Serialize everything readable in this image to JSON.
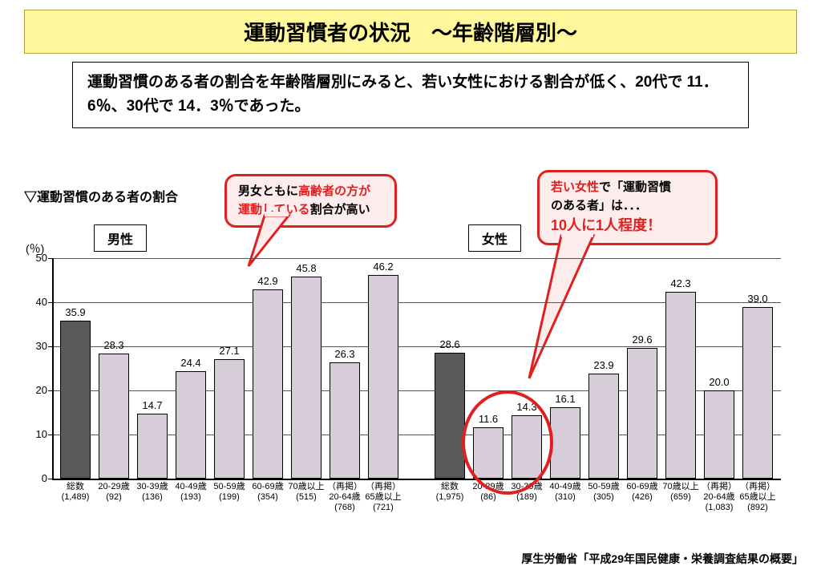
{
  "title": "運動習慣者の状況　～年齢階層別～",
  "title_bg": "#fff799",
  "description": "運動習慣のある者の割合を年齢階層別にみると、若い女性における割合が低く、20代で 11．6％、30代で 14．3％であった。",
  "subheading": "▽運動習慣のある者の割合",
  "y_unit": "(％)",
  "chart": {
    "type": "bar",
    "ylim": [
      0,
      50
    ],
    "ytick_step": 10,
    "background_color": "#ffffff",
    "grid_color": "#555555",
    "axis_color": "#000000",
    "bar_fill_normal": "#d7cdd9",
    "bar_fill_highlight": "#595959",
    "bar_border": "#000000",
    "label_fontsize": 13,
    "x_label_fontsize": 11,
    "groups": [
      {
        "name": "男性",
        "bars": [
          {
            "cat_l1": "総数",
            "cat_l2": "(1,489)",
            "value": 35.9,
            "highlight": true
          },
          {
            "cat_l1": "20-29歳",
            "cat_l2": "(92)",
            "value": 28.3,
            "highlight": false
          },
          {
            "cat_l1": "30-39歳",
            "cat_l2": "(136)",
            "value": 14.7,
            "highlight": false
          },
          {
            "cat_l1": "40-49歳",
            "cat_l2": "(193)",
            "value": 24.4,
            "highlight": false
          },
          {
            "cat_l1": "50-59歳",
            "cat_l2": "(199)",
            "value": 27.1,
            "highlight": false
          },
          {
            "cat_l1": "60-69歳",
            "cat_l2": "(354)",
            "value": 42.9,
            "highlight": false
          },
          {
            "cat_l1": "70歳以上",
            "cat_l2": "(515)",
            "value": 45.8,
            "highlight": false
          },
          {
            "cat_l1": "（再掲）",
            "cat_l2": "20-64歳",
            "cat_l3": "(768)",
            "value": 26.3,
            "highlight": false
          },
          {
            "cat_l1": "（再掲）",
            "cat_l2": "65歳以上",
            "cat_l3": "(721)",
            "value": 46.2,
            "highlight": false
          }
        ]
      },
      {
        "name": "女性",
        "bars": [
          {
            "cat_l1": "総数",
            "cat_l2": "(1,975)",
            "value": 28.6,
            "highlight": true
          },
          {
            "cat_l1": "20-29歳",
            "cat_l2": "(86)",
            "value": 11.6,
            "highlight": false
          },
          {
            "cat_l1": "30-39歳",
            "cat_l2": "(189)",
            "value": 14.3,
            "highlight": false
          },
          {
            "cat_l1": "40-49歳",
            "cat_l2": "(310)",
            "value": 16.1,
            "highlight": false
          },
          {
            "cat_l1": "50-59歳",
            "cat_l2": "(305)",
            "value": 23.9,
            "highlight": false
          },
          {
            "cat_l1": "60-69歳",
            "cat_l2": "(426)",
            "value": 29.6,
            "highlight": false
          },
          {
            "cat_l1": "70歳以上",
            "cat_l2": "(659)",
            "value": 42.3,
            "highlight": false
          },
          {
            "cat_l1": "（再掲）",
            "cat_l2": "20-64歳",
            "cat_l3": "(1,083)",
            "value": 20.0,
            "highlight": false
          },
          {
            "cat_l1": "（再掲）",
            "cat_l2": "65歳以上",
            "cat_l3": "(892)",
            "value": 39.0,
            "highlight": false
          }
        ]
      }
    ]
  },
  "callouts": {
    "left": {
      "line1_pre": "男女ともに",
      "line1_hl": "高齢者の方が",
      "line2_hl": "運動している",
      "line2_post": "割合が高い",
      "border_color": "#e02020",
      "bg_color": "#fdecec"
    },
    "right": {
      "line1_hl": "若い女性",
      "line1_post": "で「運動習慣",
      "line2": "のある者」は．．．",
      "line3": "10人に1人程度！",
      "border_color": "#e02020",
      "bg_color": "#fdecec"
    }
  },
  "source": "厚生労働省「平成29年国民健康・栄養調査結果の概要」"
}
